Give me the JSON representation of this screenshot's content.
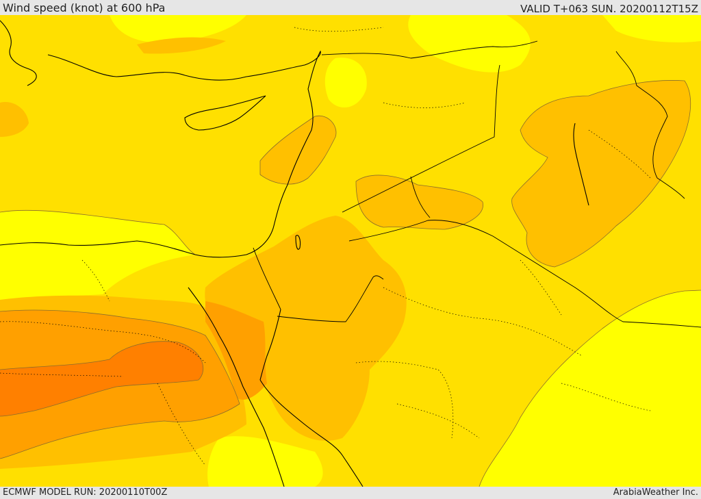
{
  "header": {
    "title": "Wind speed (knot) at 600 hPa",
    "valid_time": "VALID T+063 SUN. 20200112T15Z"
  },
  "footer": {
    "model_run": "ECMWF MODEL RUN: 20200110T00Z",
    "brand": "ArabiaWeather Inc."
  },
  "map": {
    "field": "wind speed",
    "level": "600 hPa",
    "unit": "knot",
    "colors": {
      "band_1": "#ffff00",
      "band_2": "#ffe000",
      "band_3": "#ffc000",
      "band_4": "#ffa000",
      "band_5": "#ff8000",
      "coastline": "#000000",
      "border": "#000000",
      "contour": "#8a6d2b"
    }
  }
}
